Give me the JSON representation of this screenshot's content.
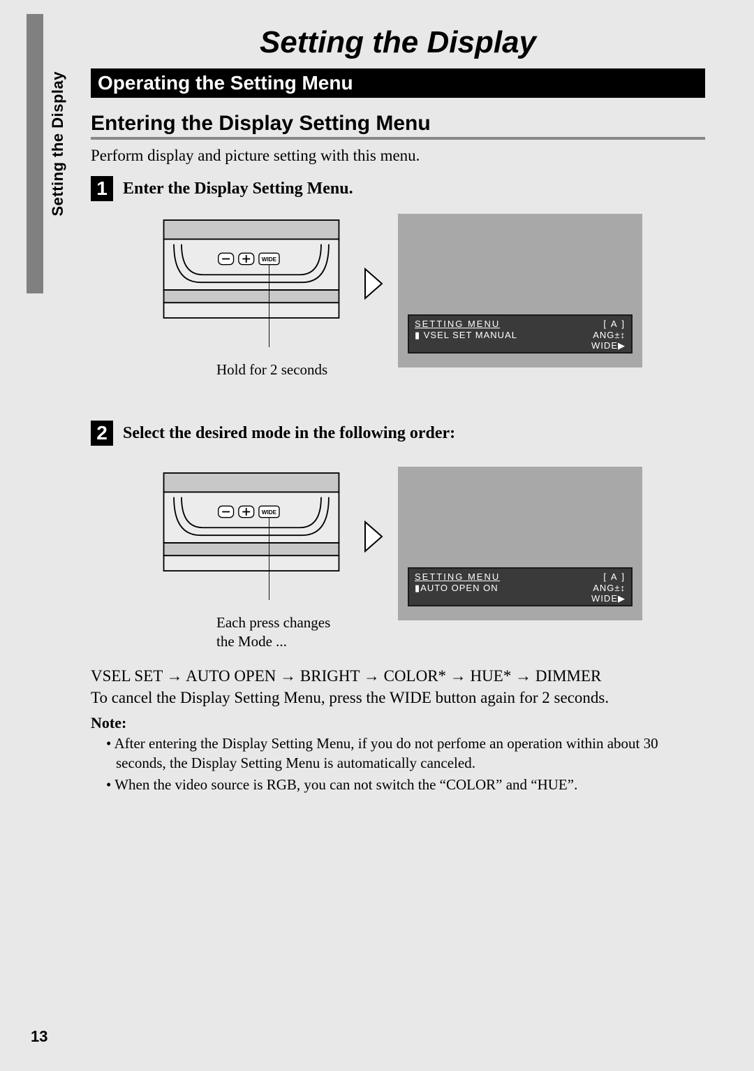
{
  "page": {
    "number": "13",
    "side_label": "Setting the Display",
    "title": "Setting the Display",
    "section_bar": "Operating the Setting Menu",
    "subheading": "Entering the Display Setting Menu",
    "intro": "Perform display and picture setting with this menu.",
    "background_color": "#e8e8e8",
    "section_bar_bg": "#000000",
    "section_bar_fg": "#ffffff",
    "underline_color": "#888888",
    "screen_bg": "#a8a8a8",
    "lcd_bg": "#3a3a3a",
    "lcd_fg": "#ffffff",
    "title_fontsize": 44,
    "section_fontsize": 28,
    "sub_fontsize": 30,
    "body_fontsize": 23
  },
  "steps": [
    {
      "num": "1",
      "title": "Enter the Display Setting Menu.",
      "caption": "Hold for 2 seconds",
      "lcd": {
        "header": "SETTING  MENU",
        "header_right": "[ A ]",
        "line2_left": "▮ VSEL SET MANUAL",
        "line2_right": "ANG±↕",
        "line3_right": "WIDE▶"
      }
    },
    {
      "num": "2",
      "title": "Select the desired mode in the following order:",
      "caption": "Each press changes\nthe Mode ...",
      "lcd": {
        "header": "SETTING  MENU",
        "header_right": "[ A ]",
        "line2_left": "▮AUTO OPEN  ON",
        "line2_right": "ANG±↕",
        "line3_right": "WIDE▶"
      }
    }
  ],
  "sequence": {
    "items": [
      "VSEL SET",
      "AUTO OPEN",
      "BRIGHT",
      "COLOR*",
      "HUE*",
      "DIMMER"
    ],
    "arrow": "→"
  },
  "cancel": "To cancel the Display Setting Menu, press the WIDE button again for 2 seconds.",
  "note": {
    "heading": "Note:",
    "items": [
      "After entering the Display Setting Menu, if you do not perfome an operation within about 30 seconds, the Display Setting Menu is automatically canceled.",
      "When the video source is RGB, you can not switch the “COLOR” and “HUE”."
    ]
  }
}
